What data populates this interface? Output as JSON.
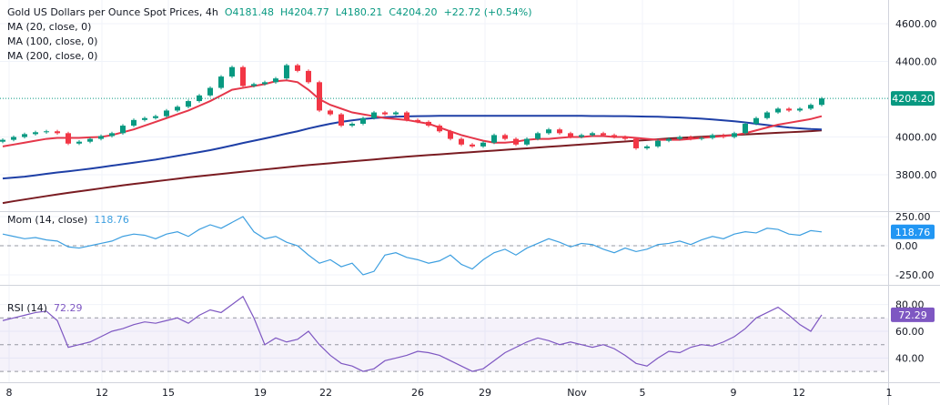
{
  "header": {
    "title": "Gold US Dollars per Ounce Spot Prices, 4h",
    "open": "O4181.48",
    "high": "H4204.77",
    "low": "L4180.21",
    "close": "C4204.20",
    "change": "+22.72 (+0.54%)",
    "ma_labels": [
      "MA (20, close, 0)",
      "MA (100, close, 0)",
      "MA (200, close, 0)"
    ]
  },
  "mom_label": "Mom (14, close)",
  "mom_value": "118.76",
  "rsi_label": "RSI (14)",
  "rsi_value": "72.29",
  "last_price_label": "4204.20",
  "colors": {
    "up": "#089981",
    "down": "#f23645",
    "ma20": "#e5374a",
    "ma100": "#1e3fa6",
    "ma200": "#7a1c22",
    "mom": "#3d9fe0",
    "rsi": "#7e57c2"
  },
  "chart_data": [
    {
      "type": "candlestick",
      "ylim": [
        3650,
        4700
      ],
      "yticks": [
        "4600.00",
        "4400.00",
        "4000.00",
        "3800.00"
      ],
      "ytick_values": [
        4600,
        4400,
        4000,
        3800
      ],
      "xticks": [
        "8",
        "12",
        "15",
        "19",
        "22",
        "26",
        "29",
        "Nov",
        "5",
        "9",
        "12",
        "1"
      ],
      "close": [
        3985,
        4000,
        4015,
        4025,
        4030,
        4020,
        3965,
        3975,
        3990,
        4005,
        4020,
        4060,
        4090,
        4100,
        4110,
        4140,
        4160,
        4190,
        4220,
        4260,
        4320,
        4370,
        4270,
        4280,
        4290,
        4310,
        4380,
        4350,
        4290,
        4140,
        4120,
        4060,
        4070,
        4100,
        4130,
        4120,
        4130,
        4090,
        4080,
        4060,
        4030,
        3990,
        3960,
        3950,
        3970,
        4010,
        3990,
        3960,
        3990,
        4020,
        4040,
        4020,
        4000,
        4010,
        4020,
        4010,
        4000,
        3990,
        3940,
        3950,
        3980,
        3990,
        4000,
        3990,
        3995,
        4010,
        4000,
        4020,
        4070,
        4100,
        4130,
        4150,
        4140,
        4150,
        4170,
        4204.2
      ],
      "ma20": [
        3950,
        3960,
        3970,
        3980,
        3990,
        3995,
        3995,
        3995,
        3998,
        4000,
        4010,
        4025,
        4040,
        4060,
        4080,
        4100,
        4120,
        4140,
        4165,
        4190,
        4220,
        4250,
        4260,
        4270,
        4280,
        4295,
        4300,
        4290,
        4250,
        4200,
        4170,
        4150,
        4130,
        4120,
        4110,
        4100,
        4095,
        4090,
        4080,
        4070,
        4050,
        4030,
        4010,
        3995,
        3980,
        3970,
        3970,
        3975,
        3985,
        3990,
        3990,
        3995,
        4000,
        4000,
        4005,
        4005,
        4000,
        4000,
        3995,
        3990,
        3985,
        3985,
        3985,
        3990,
        3995,
        4000,
        4005,
        4010,
        4020,
        4035,
        4050,
        4065,
        4075,
        4085,
        4095,
        4110
      ],
      "ma100": [
        3780,
        3785,
        3790,
        3797,
        3805,
        3812,
        3818,
        3825,
        3832,
        3840,
        3848,
        3856,
        3864,
        3872,
        3880,
        3890,
        3900,
        3910,
        3920,
        3930,
        3942,
        3955,
        3968,
        3980,
        3992,
        4005,
        4018,
        4030,
        4045,
        4058,
        4070,
        4080,
        4088,
        4095,
        4100,
        4104,
        4107,
        4109,
        4110,
        4111,
        4112,
        4112,
        4112,
        4112,
        4112,
        4112,
        4112,
        4112,
        4112,
        4112,
        4112,
        4112,
        4112,
        4112,
        4111,
        4111,
        4110,
        4110,
        4109,
        4108,
        4107,
        4105,
        4103,
        4100,
        4097,
        4093,
        4088,
        4083,
        4077,
        4070,
        4063,
        4056,
        4050,
        4046,
        4042,
        4040
      ],
      "ma200": [
        3650,
        3660,
        3669,
        3678,
        3687,
        3696,
        3704,
        3712,
        3720,
        3728,
        3736,
        3744,
        3751,
        3758,
        3765,
        3772,
        3779,
        3786,
        3792,
        3798,
        3804,
        3810,
        3816,
        3822,
        3828,
        3834,
        3840,
        3846,
        3851,
        3856,
        3861,
        3866,
        3871,
        3876,
        3881,
        3886,
        3891,
        3896,
        3900,
        3904,
        3908,
        3912,
        3916,
        3920,
        3924,
        3928,
        3932,
        3936,
        3940,
        3944,
        3948,
        3952,
        3956,
        3960,
        3964,
        3968,
        3972,
        3976,
        3980,
        3984,
        3988,
        3992,
        3995,
        3998,
        4001,
        4004,
        4007,
        4010,
        4013,
        4016,
        4019,
        4022,
        4025,
        4028,
        4031,
        4035
      ]
    },
    {
      "type": "line",
      "name": "Mom (14, close)",
      "ylim": [
        -310,
        300
      ],
      "yticks": [
        "250.00",
        "0.00",
        "-250.00"
      ],
      "ytick_values": [
        250,
        0,
        -250
      ],
      "values": [
        100,
        80,
        60,
        70,
        50,
        40,
        -10,
        -20,
        0,
        20,
        40,
        80,
        100,
        90,
        60,
        100,
        120,
        80,
        140,
        180,
        150,
        200,
        250,
        120,
        60,
        80,
        30,
        0,
        -80,
        -150,
        -120,
        -180,
        -150,
        -250,
        -220,
        -80,
        -60,
        -100,
        -120,
        -150,
        -130,
        -80,
        -160,
        -200,
        -120,
        -60,
        -30,
        -80,
        -20,
        20,
        60,
        30,
        -10,
        20,
        10,
        -30,
        -60,
        -20,
        -50,
        -30,
        10,
        20,
        40,
        10,
        50,
        80,
        60,
        100,
        120,
        110,
        150,
        140,
        100,
        90,
        130,
        118.76
      ]
    },
    {
      "type": "line",
      "name": "RSI (14)",
      "ylim": [
        20,
        94
      ],
      "bands": [
        30,
        50,
        70
      ],
      "yticks": [
        "80.00",
        "60.00",
        "40.00"
      ],
      "ytick_values": [
        80,
        60,
        40
      ],
      "values": [
        68,
        70,
        72,
        74,
        75,
        68,
        48,
        50,
        52,
        56,
        60,
        62,
        65,
        67,
        66,
        68,
        70,
        66,
        72,
        76,
        74,
        80,
        86,
        70,
        50,
        55,
        52,
        54,
        60,
        50,
        42,
        36,
        34,
        30,
        32,
        38,
        40,
        42,
        45,
        44,
        42,
        38,
        34,
        30,
        32,
        38,
        44,
        48,
        52,
        55,
        53,
        50,
        52,
        50,
        48,
        50,
        47,
        42,
        36,
        34,
        40,
        45,
        44,
        48,
        50,
        49,
        52,
        56,
        62,
        70,
        74,
        78,
        72,
        65,
        60,
        72.29
      ]
    }
  ]
}
